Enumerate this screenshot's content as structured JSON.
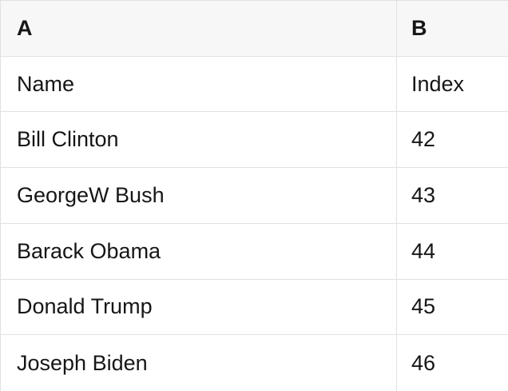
{
  "table": {
    "header": [
      "A",
      "B"
    ],
    "rows": [
      [
        "Name",
        "Index"
      ],
      [
        "Bill Clinton",
        "42"
      ],
      [
        "GeorgeW Bush",
        "43"
      ],
      [
        "Barack Obama",
        "44"
      ],
      [
        "Donald Trump",
        "45"
      ],
      [
        "Joseph Biden",
        "46"
      ]
    ]
  },
  "colors": {
    "header_bg": "#f7f7f7",
    "border": "#e1e1e1",
    "text": "#161616",
    "cell_bg": "#ffffff"
  }
}
